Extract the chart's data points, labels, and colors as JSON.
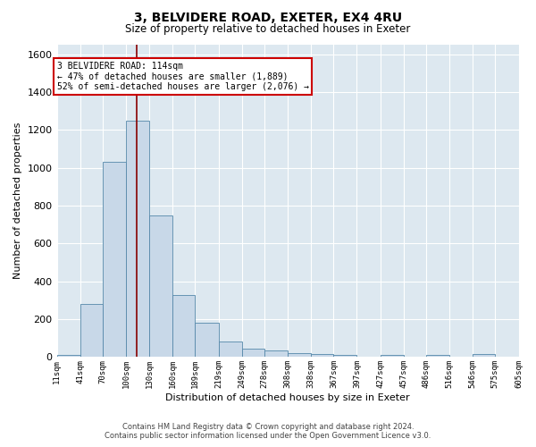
{
  "title": "3, BELVIDERE ROAD, EXETER, EX4 4RU",
  "subtitle": "Size of property relative to detached houses in Exeter",
  "xlabel": "Distribution of detached houses by size in Exeter",
  "ylabel": "Number of detached properties",
  "bar_values": [
    10,
    280,
    1030,
    1250,
    750,
    330,
    180,
    80,
    45,
    35,
    20,
    15,
    10,
    0,
    10,
    0,
    10,
    0,
    15,
    0
  ],
  "bin_edges": [
    11,
    41,
    70,
    100,
    130,
    160,
    189,
    219,
    249,
    278,
    308,
    338,
    367,
    397,
    427,
    457,
    486,
    516,
    546,
    575,
    605
  ],
  "tick_labels": [
    "11sqm",
    "41sqm",
    "70sqm",
    "100sqm",
    "130sqm",
    "160sqm",
    "189sqm",
    "219sqm",
    "249sqm",
    "278sqm",
    "308sqm",
    "338sqm",
    "367sqm",
    "397sqm",
    "427sqm",
    "457sqm",
    "486sqm",
    "516sqm",
    "546sqm",
    "575sqm",
    "605sqm"
  ],
  "bar_color": "#c8d8e8",
  "bar_edge_color": "#5588aa",
  "vline_x": 114,
  "vline_color": "#880000",
  "ylim": [
    0,
    1650
  ],
  "yticks": [
    0,
    200,
    400,
    600,
    800,
    1000,
    1200,
    1400,
    1600
  ],
  "annotation_title": "3 BELVIDERE ROAD: 114sqm",
  "annotation_line1": "← 47% of detached houses are smaller (1,889)",
  "annotation_line2": "52% of semi-detached houses are larger (2,076) →",
  "annotation_box_color": "#ffffff",
  "annotation_box_edge": "#cc0000",
  "footer1": "Contains HM Land Registry data © Crown copyright and database right 2024.",
  "footer2": "Contains public sector information licensed under the Open Government Licence v3.0.",
  "bg_color": "#ffffff",
  "plot_bg_color": "#dde8f0"
}
